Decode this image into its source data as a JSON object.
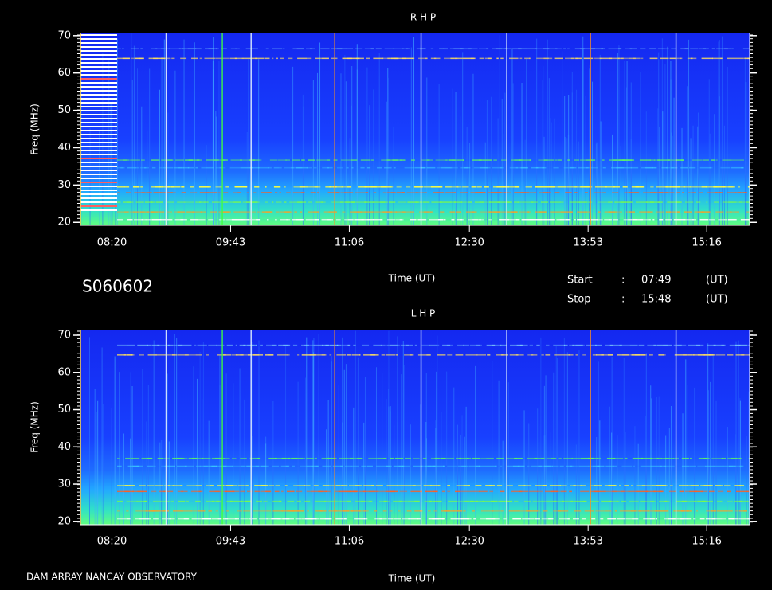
{
  "chart_data": [
    {
      "type": "spectrogram",
      "title": "R H P",
      "ylabel": "Freq (MHz)",
      "xlabel": "Time (UT)",
      "xlim": [
        478,
        946
      ],
      "xticks": [
        {
          "value": 500,
          "label": "08:20"
        },
        {
          "value": 583,
          "label": "09:43"
        },
        {
          "value": 666,
          "label": "11:06"
        },
        {
          "value": 750,
          "label": "12:30"
        },
        {
          "value": 833,
          "label": "13:53"
        },
        {
          "value": 916,
          "label": "15:16"
        }
      ],
      "ylim": [
        19.2,
        70.6
      ],
      "yticks": [
        20,
        30,
        40,
        50,
        60,
        70
      ]
    },
    {
      "type": "spectrogram",
      "title": "L H P",
      "ylabel": "Freq (MHz)",
      "xlabel": "Time (UT)",
      "xlim": [
        478,
        946
      ],
      "xticks": [
        {
          "value": 500,
          "label": "08:20"
        },
        {
          "value": 583,
          "label": "09:43"
        },
        {
          "value": 666,
          "label": "11:06"
        },
        {
          "value": 750,
          "label": "12:30"
        },
        {
          "value": 833,
          "label": "13:53"
        },
        {
          "value": 916,
          "label": "15:16"
        }
      ],
      "ylim": [
        19.1,
        71.5
      ],
      "yticks": [
        20,
        30,
        40,
        50,
        60,
        70
      ]
    }
  ],
  "header": {
    "id": "S060602",
    "start_label": "Start",
    "colon": ":",
    "start": "07:49",
    "stop_label": "Stop",
    "stop": "15:48",
    "unit": "(UT)"
  },
  "footer": "DAM ARRAY  NANCAY OBSERVATORY"
}
